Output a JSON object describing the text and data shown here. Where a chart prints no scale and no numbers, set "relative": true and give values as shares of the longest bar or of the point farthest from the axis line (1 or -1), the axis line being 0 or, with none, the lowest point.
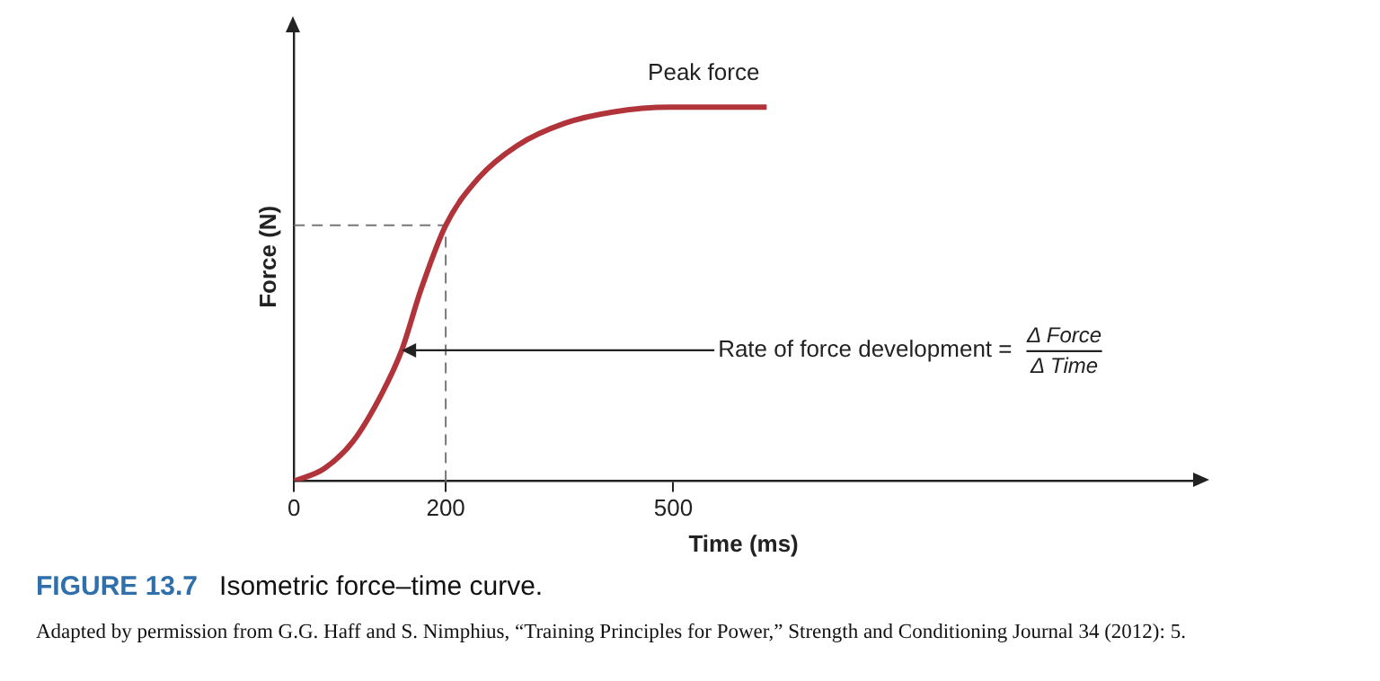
{
  "chart_data": {
    "type": "line",
    "title": "FIGURE 13.7  Isometric force–time curve.",
    "xlabel": "Time (ms)",
    "ylabel": "Force (N)",
    "relative": true,
    "x": [
      0,
      40,
      78,
      116,
      142,
      167,
      200,
      243,
      294,
      357,
      420,
      496,
      623
    ],
    "series": [
      {
        "color": "#b0343a",
        "values": [
          0,
          0.034,
          0.107,
          0.235,
          0.35,
          0.51,
          0.684,
          0.81,
          0.897,
          0.957,
          0.987,
          1,
          1
        ]
      }
    ],
    "xlim": [
      0,
      1185
    ],
    "xticks": [
      0,
      200,
      500
    ],
    "ref_lines": [
      {
        "axis": "x",
        "value": 200,
        "color": "#777777",
        "line_style": "dashed"
      },
      {
        "axis": "y",
        "value": 0.684,
        "color": "#777777",
        "line_style": "dashed"
      }
    ],
    "annotations": [
      {
        "text": "Peak force",
        "x": 540,
        "y": 1
      },
      {
        "text": "Rate of force development =",
        "x": 142,
        "y": 0.35
      },
      "Δ Force",
      "Δ Time",
      "Adapted by permission from G.G. Haff and S. Nimphius, “Training Principles for Power,” Strength and Conditioning Journal 34 (2012): 5."
    ],
    "grid": false,
    "legend": false,
    "marker": "none",
    "line_style": "solid"
  }
}
